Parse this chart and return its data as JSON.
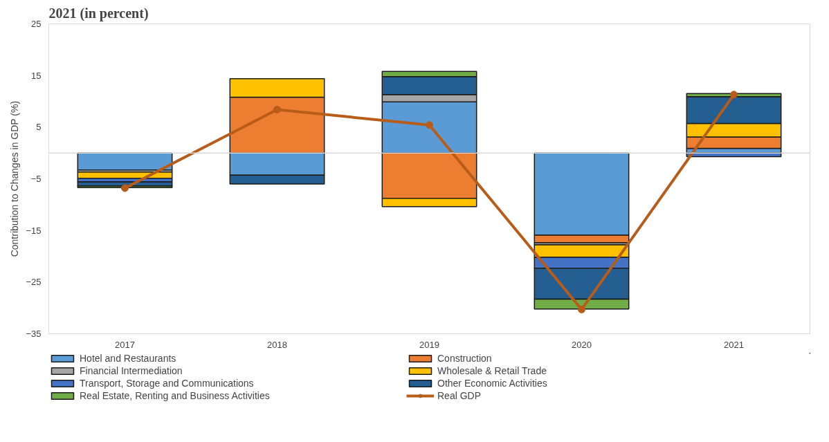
{
  "chart_data": {
    "type": "bar",
    "stacked": true,
    "title": "2021 (in percent)",
    "ylabel": "Contribution to Changes in GDP (%)",
    "categories": [
      "2017",
      "2018",
      "2019",
      "2020",
      "2021"
    ],
    "series": [
      {
        "name": "Hotel and Restaurants",
        "color": "#5b9bd5",
        "values": [
          -3.3,
          -4.3,
          9.9,
          -15.9,
          0.9
        ]
      },
      {
        "name": "Construction",
        "color": "#ed7d31",
        "values": [
          0,
          10.8,
          -8.8,
          -1.5,
          2.2
        ]
      },
      {
        "name": "Financial Intermediation",
        "color": "#a5a5a5",
        "values": [
          -0.4,
          0,
          1.4,
          -0.4,
          0
        ]
      },
      {
        "name": "Wholesale & Retail Trade",
        "color": "#ffc000",
        "values": [
          -1.2,
          3.6,
          -1.6,
          -2.4,
          2.6
        ]
      },
      {
        "name": "Transport, Storage and Communications",
        "color": "#4472c4",
        "values": [
          -0.7,
          0,
          0,
          -2.1,
          -0.7
        ]
      },
      {
        "name": "Other Economic Activities",
        "color": "#255e91",
        "values": [
          -0.8,
          -1.7,
          3.5,
          -6.0,
          5.2
        ]
      },
      {
        "name": "Real Estate, Renting and Business Activities",
        "color": "#70ad47",
        "values": [
          -0.3,
          0,
          1.0,
          -1.9,
          0.6
        ]
      },
      {
        "name": "Real GDP",
        "type": "line",
        "color": "#b85c1a",
        "marker": "circle",
        "values": [
          -6.8,
          8.4,
          5.4,
          -30.3,
          11.3
        ]
      }
    ],
    "ylim": [
      -35,
      25
    ],
    "yticks": [
      -35,
      -25,
      -15,
      -5,
      5,
      15,
      25
    ],
    "ref_lines": [
      {
        "axis": "y",
        "value": 0,
        "color": "#d9d9d9"
      }
    ],
    "grid": false,
    "legend": "bottom"
  }
}
